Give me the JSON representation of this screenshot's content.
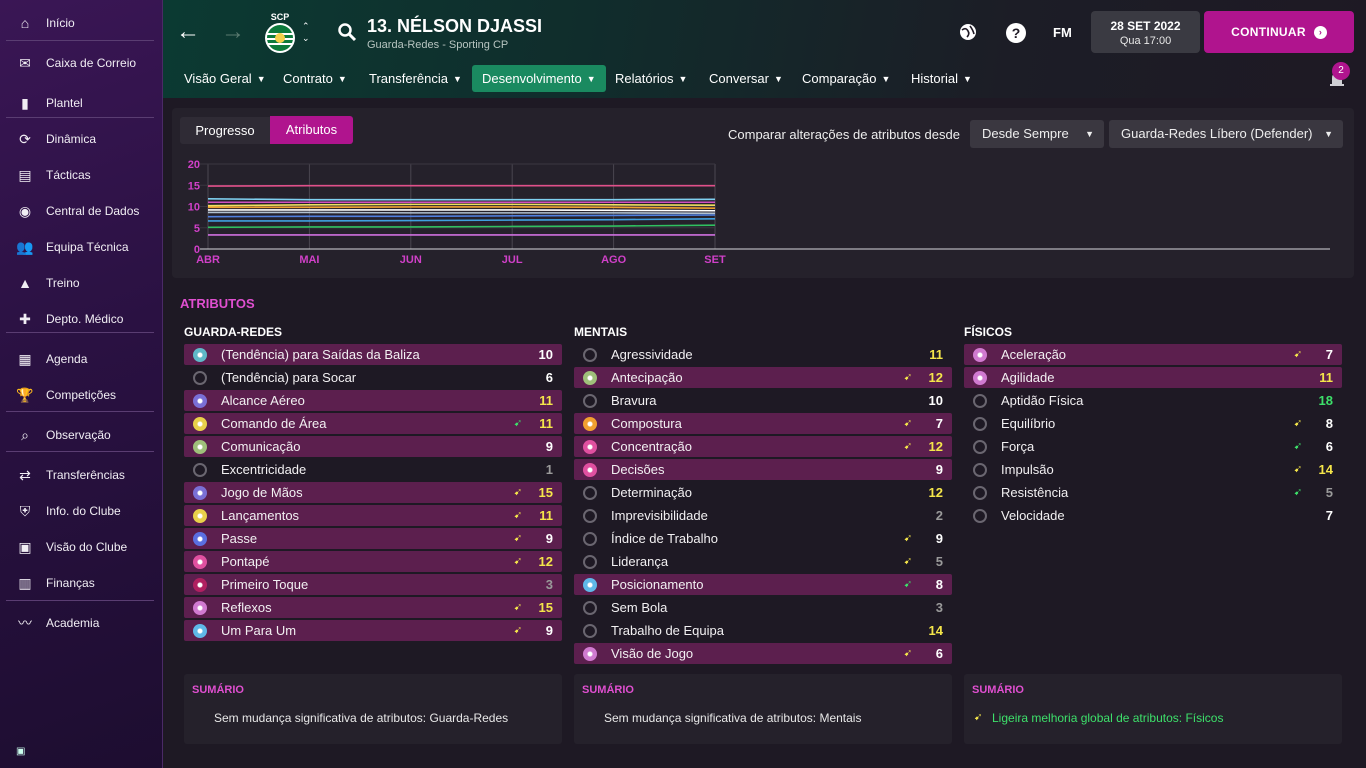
{
  "sidebar": {
    "items": [
      {
        "label": "Início",
        "icon": "home-icon"
      },
      {
        "label": "Caixa de Correio",
        "icon": "inbox-icon"
      },
      {
        "label": "Plantel",
        "icon": "shirt-icon"
      },
      {
        "label": "Dinâmica",
        "icon": "dynamics-icon"
      },
      {
        "label": "Tácticas",
        "icon": "tactics-icon"
      },
      {
        "label": "Central de Dados",
        "icon": "data-icon"
      },
      {
        "label": "Equipa Técnica",
        "icon": "staff-icon"
      },
      {
        "label": "Treino",
        "icon": "training-icon"
      },
      {
        "label": "Depto. Médico",
        "icon": "medical-icon"
      },
      {
        "label": "Agenda",
        "icon": "calendar-icon"
      },
      {
        "label": "Competições",
        "icon": "trophy-icon"
      },
      {
        "label": "Observação",
        "icon": "scouting-icon"
      },
      {
        "label": "Transferências",
        "icon": "transfer-icon"
      },
      {
        "label": "Info. do Clube",
        "icon": "club-shield-icon"
      },
      {
        "label": "Visão do Clube",
        "icon": "briefcase-icon"
      },
      {
        "label": "Finanças",
        "icon": "finance-icon"
      },
      {
        "label": "Academia",
        "icon": "academy-icon"
      }
    ]
  },
  "header": {
    "player_name": "13. NÉLSON DJASSI",
    "player_sub": "Guarda-Redes - Sporting CP",
    "crest_text": "SCP",
    "fm_label": "FM",
    "help_label": "?",
    "date": "28 SET 2022",
    "day_time": "Qua 17:00",
    "continue_label": "CONTINUAR",
    "notifications": "2",
    "tabs": [
      "Visão Geral",
      "Contrato",
      "Transferência",
      "Desenvolvimento",
      "Relatórios",
      "Conversar",
      "Comparação",
      "Historial"
    ],
    "active_tab": "Desenvolvimento"
  },
  "toolbar": {
    "progress_label": "Progresso",
    "attributes_label": "Atributos",
    "compare_label": "Comparar alterações de atributos desde",
    "since_value": "Desde Sempre",
    "role_value": "Guarda-Redes Líbero (Defender)"
  },
  "chart_data": {
    "type": "line",
    "x": [
      "ABR",
      "MAI",
      "JUN",
      "JUL",
      "AGO",
      "SET"
    ],
    "ylim": [
      0,
      20
    ],
    "yticks": [
      0,
      5,
      10,
      15,
      20
    ],
    "grid": true,
    "series": [
      {
        "color": "#e0508a",
        "values": [
          14.8,
          14.9,
          14.9,
          14.9,
          14.9,
          14.9
        ]
      },
      {
        "color": "#7fd0f0",
        "values": [
          11.8,
          11.6,
          11.6,
          11.6,
          11.6,
          11.7
        ]
      },
      {
        "color": "#d04fc0",
        "values": [
          11.0,
          11.0,
          11.0,
          11.0,
          11.0,
          11.0
        ]
      },
      {
        "color": "#f0e060",
        "values": [
          10.2,
          10.4,
          10.5,
          10.5,
          10.4,
          10.3
        ]
      },
      {
        "color": "#f0a030",
        "values": [
          9.8,
          9.8,
          9.9,
          9.9,
          9.8,
          9.6
        ]
      },
      {
        "color": "#ffffff",
        "values": [
          9.2,
          9.2,
          9.2,
          9.2,
          9.1,
          9.0
        ]
      },
      {
        "color": "#b0c0d0",
        "values": [
          8.6,
          8.6,
          8.5,
          8.5,
          8.5,
          8.4
        ]
      },
      {
        "color": "#5080e0",
        "values": [
          7.6,
          7.7,
          7.7,
          7.8,
          7.9,
          8.0
        ]
      },
      {
        "color": "#40a0e0",
        "values": [
          6.6,
          6.6,
          6.7,
          6.8,
          6.9,
          7.1
        ]
      },
      {
        "color": "#30c060",
        "values": [
          5.1,
          5.2,
          5.2,
          5.3,
          5.4,
          5.6
        ]
      },
      {
        "color": "#d070e0",
        "values": [
          3.3,
          3.3,
          3.3,
          3.3,
          3.3,
          3.3
        ]
      }
    ]
  },
  "attributes": {
    "title": "ATRIBUTOS",
    "columns": [
      {
        "title": "GUARDA-REDES",
        "rows": [
          {
            "name": "(Tendência) para Saídas da Baliza",
            "value": "10",
            "trend": "",
            "color": "#ffffff",
            "dot": "#5fb8c8",
            "hl": true
          },
          {
            "name": "(Tendência) para Socar",
            "value": "6",
            "trend": "",
            "color": "#ffffff",
            "dot": "#555",
            "hl": false
          },
          {
            "name": "Alcance Aéreo",
            "value": "11",
            "trend": "",
            "color": "#f5e64a",
            "dot": "#7a6fd6",
            "hl": true
          },
          {
            "name": "Comando de Área",
            "value": "11",
            "trend": "up-green",
            "color": "#f5e64a",
            "dot": "#e8d04a",
            "hl": true
          },
          {
            "name": "Comunicação",
            "value": "9",
            "trend": "",
            "color": "#ffffff",
            "dot": "#9fc07a",
            "hl": true
          },
          {
            "name": "Excentricidade",
            "value": "1",
            "trend": "",
            "color": "#9a9a9a",
            "dot": "#555",
            "hl": false
          },
          {
            "name": "Jogo de Mãos",
            "value": "15",
            "trend": "up-yellow",
            "color": "#f5e64a",
            "dot": "#7a6fd6",
            "hl": true
          },
          {
            "name": "Lançamentos",
            "value": "11",
            "trend": "up-yellow",
            "color": "#f5e64a",
            "dot": "#e8d04a",
            "hl": true
          },
          {
            "name": "Passe",
            "value": "9",
            "trend": "up-yellow",
            "color": "#ffffff",
            "dot": "#5a6fe0",
            "hl": true
          },
          {
            "name": "Pontapé",
            "value": "12",
            "trend": "up-yellow",
            "color": "#f5e64a",
            "dot": "#e050a0",
            "hl": true
          },
          {
            "name": "Primeiro Toque",
            "value": "3",
            "trend": "",
            "color": "#9a9a9a",
            "dot": "#b02060",
            "hl": true
          },
          {
            "name": "Reflexos",
            "value": "15",
            "trend": "up-yellow",
            "color": "#f5e64a",
            "dot": "#d07ad0",
            "hl": true
          },
          {
            "name": "Um Para Um",
            "value": "9",
            "trend": "up-yellow",
            "color": "#ffffff",
            "dot": "#5fb8e8",
            "hl": true
          }
        ]
      },
      {
        "title": "MENTAIS",
        "rows": [
          {
            "name": "Agressividade",
            "value": "11",
            "trend": "",
            "color": "#f5e64a",
            "dot": "#555",
            "hl": false
          },
          {
            "name": "Antecipação",
            "value": "12",
            "trend": "up-yellow",
            "color": "#f5e64a",
            "dot": "#9fc07a",
            "hl": true
          },
          {
            "name": "Bravura",
            "value": "10",
            "trend": "",
            "color": "#ffffff",
            "dot": "#555",
            "hl": false
          },
          {
            "name": "Compostura",
            "value": "7",
            "trend": "up-yellow",
            "color": "#ffffff",
            "dot": "#f0a030",
            "hl": true
          },
          {
            "name": "Concentração",
            "value": "12",
            "trend": "up-yellow",
            "color": "#f5e64a",
            "dot": "#e050a0",
            "hl": true
          },
          {
            "name": "Decisões",
            "value": "9",
            "trend": "",
            "color": "#ffffff",
            "dot": "#e050a0",
            "hl": true
          },
          {
            "name": "Determinação",
            "value": "12",
            "trend": "",
            "color": "#f5e64a",
            "dot": "#555",
            "hl": false
          },
          {
            "name": "Imprevisibilidade",
            "value": "2",
            "trend": "",
            "color": "#9a9a9a",
            "dot": "#555",
            "hl": false
          },
          {
            "name": "Índice de Trabalho",
            "value": "9",
            "trend": "up-yellow",
            "color": "#ffffff",
            "dot": "#555",
            "hl": false
          },
          {
            "name": "Liderança",
            "value": "5",
            "trend": "up-yellow",
            "color": "#9a9a9a",
            "dot": "#555",
            "hl": false
          },
          {
            "name": "Posicionamento",
            "value": "8",
            "trend": "up-green",
            "color": "#ffffff",
            "dot": "#5fb8e8",
            "hl": true
          },
          {
            "name": "Sem Bola",
            "value": "3",
            "trend": "",
            "color": "#9a9a9a",
            "dot": "#555",
            "hl": false
          },
          {
            "name": "Trabalho de Equipa",
            "value": "14",
            "trend": "",
            "color": "#f5e64a",
            "dot": "#555",
            "hl": false
          },
          {
            "name": "Visão de Jogo",
            "value": "6",
            "trend": "up-yellow",
            "color": "#ffffff",
            "dot": "#d07ad0",
            "hl": true
          }
        ]
      },
      {
        "title": "FÍSICOS",
        "rows": [
          {
            "name": "Aceleração",
            "value": "7",
            "trend": "up-yellow",
            "color": "#ffffff",
            "dot": "#d07ad0",
            "hl": true
          },
          {
            "name": "Agilidade",
            "value": "11",
            "trend": "",
            "color": "#f5e64a",
            "dot": "#d07ad0",
            "hl": true
          },
          {
            "name": "Aptidão Física",
            "value": "18",
            "trend": "",
            "color": "#3de06a",
            "dot": "#555",
            "hl": false
          },
          {
            "name": "Equilíbrio",
            "value": "8",
            "trend": "up-yellow",
            "color": "#ffffff",
            "dot": "#555",
            "hl": false
          },
          {
            "name": "Força",
            "value": "6",
            "trend": "up-green",
            "color": "#ffffff",
            "dot": "#555",
            "hl": false
          },
          {
            "name": "Impulsão",
            "value": "14",
            "trend": "up-yellow",
            "color": "#f5e64a",
            "dot": "#555",
            "hl": false
          },
          {
            "name": "Resistência",
            "value": "5",
            "trend": "up-green",
            "color": "#9a9a9a",
            "dot": "#555",
            "hl": false
          },
          {
            "name": "Velocidade",
            "value": "7",
            "trend": "",
            "color": "#ffffff",
            "dot": "#555",
            "hl": false
          }
        ]
      }
    ]
  },
  "summaries": [
    {
      "title": "SUMÁRIO",
      "text": "Sem mudança significativa de atributos: Guarda-Redes",
      "positive": false
    },
    {
      "title": "SUMÁRIO",
      "text": "Sem mudança significativa de atributos: Mentais",
      "positive": false
    },
    {
      "title": "SUMÁRIO",
      "text": "Ligeira melhoria global de atributos: Físicos",
      "positive": true
    }
  ],
  "colors": {
    "accent": "#b0148e",
    "active_tab": "#1a8a60",
    "highlight_row": "#5c1f4e",
    "good": "#3de06a",
    "warn": "#f5e64a"
  }
}
